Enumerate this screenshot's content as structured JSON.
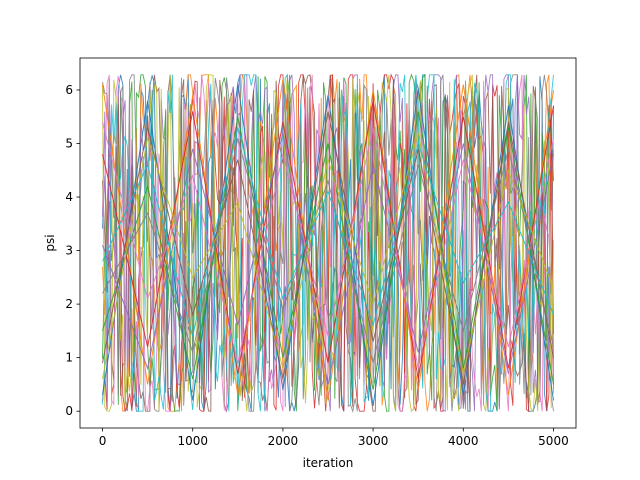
{
  "chart_data": {
    "type": "line",
    "title": "",
    "xlabel": "iteration",
    "ylabel": "psi",
    "xlim": [
      -250,
      5250
    ],
    "ylim": [
      -0.314,
      6.597
    ],
    "x_ticks": [
      0,
      1000,
      2000,
      3000,
      4000,
      5000
    ],
    "x_tick_labels": [
      "0",
      "1000",
      "2000",
      "3000",
      "4000",
      "5000"
    ],
    "y_ticks": [
      0,
      1,
      2,
      3,
      4,
      5,
      6
    ],
    "y_tick_labels": [
      "0",
      "1",
      "2",
      "3",
      "4",
      "5",
      "6"
    ],
    "grid": false,
    "legend": "none",
    "n_iterations": 5000,
    "value_range": [
      0,
      6.283
    ],
    "series_colors": [
      "#1f77b4",
      "#ff7f0e",
      "#2ca02c",
      "#d62728",
      "#9467bd",
      "#8c564b",
      "#e377c2",
      "#7f7f7f",
      "#bcbd22",
      "#17becf"
    ],
    "series": [
      {
        "x": [
          0,
          500,
          1000,
          1500,
          2000,
          2500,
          3000,
          3500,
          4000,
          4500,
          5000
        ],
        "values": [
          0.3,
          5.8,
          0.2,
          6.1,
          0.4,
          5.9,
          0.1,
          6.0,
          0.3,
          5.7,
          0.2
        ]
      },
      {
        "x": [
          0,
          500,
          1000,
          1500,
          2000,
          2500,
          3000,
          3500,
          4000,
          4500,
          5000
        ],
        "values": [
          6.1,
          0.5,
          5.9,
          0.3,
          6.2,
          0.2,
          6.0,
          0.4,
          6.1,
          0.3,
          6.0
        ]
      },
      {
        "x": [
          0,
          500,
          1000,
          1500,
          2000,
          2500,
          3000,
          3500,
          4000,
          4500,
          5000
        ],
        "values": [
          1.5,
          4.2,
          0.6,
          5.5,
          1.0,
          5.0,
          0.4,
          5.6,
          0.8,
          5.3,
          0.5
        ]
      },
      {
        "x": [
          0,
          500,
          1000,
          1500,
          2000,
          2500,
          3000,
          3500,
          4000,
          4500,
          5000
        ],
        "values": [
          4.8,
          1.2,
          5.6,
          0.7,
          5.4,
          0.9,
          5.8,
          0.6,
          5.5,
          0.8,
          5.7
        ]
      },
      {
        "x": [
          0,
          500,
          1000,
          1500,
          2000,
          2500,
          3000,
          3500,
          4000,
          4500,
          5000
        ],
        "values": [
          3.1,
          0.8,
          4.9,
          1.6,
          5.2,
          0.5,
          4.6,
          1.1,
          5.0,
          0.7,
          4.8
        ]
      },
      {
        "x": [
          0,
          500,
          1000,
          1500,
          2000,
          2500,
          3000,
          3500,
          4000,
          4500,
          5000
        ],
        "values": [
          0.9,
          5.3,
          1.8,
          4.7,
          0.6,
          5.6,
          1.3,
          4.9,
          0.5,
          5.4,
          1.0
        ]
      },
      {
        "x": [
          0,
          500,
          1000,
          1500,
          2000,
          2500,
          3000,
          3500,
          4000,
          4500,
          5000
        ],
        "values": [
          5.4,
          2.1,
          4.4,
          0.9,
          4.8,
          1.4,
          5.3,
          0.8,
          4.7,
          1.2,
          5.1
        ]
      },
      {
        "x": [
          0,
          500,
          1000,
          1500,
          2000,
          2500,
          3000,
          3500,
          4000,
          4500,
          5000
        ],
        "values": [
          2.2,
          3.7,
          1.1,
          5.1,
          1.9,
          4.3,
          0.9,
          4.6,
          1.5,
          4.9,
          1.2
        ]
      },
      {
        "x": [
          0,
          500,
          1000,
          1500,
          2000,
          2500,
          3000,
          3500,
          4000,
          4500,
          5000
        ],
        "values": [
          0.6,
          5.1,
          2.5,
          3.9,
          0.8,
          4.7,
          2.0,
          5.2,
          0.7,
          4.5,
          2.3
        ]
      },
      {
        "x": [
          0,
          500,
          1000,
          1500,
          2000,
          2500,
          3000,
          3500,
          4000,
          4500,
          5000
        ],
        "values": [
          2.8,
          4.6,
          1.4,
          5.3,
          2.1,
          4.1,
          1.6,
          5.0,
          2.4,
          3.9,
          1.8
        ]
      }
    ]
  }
}
